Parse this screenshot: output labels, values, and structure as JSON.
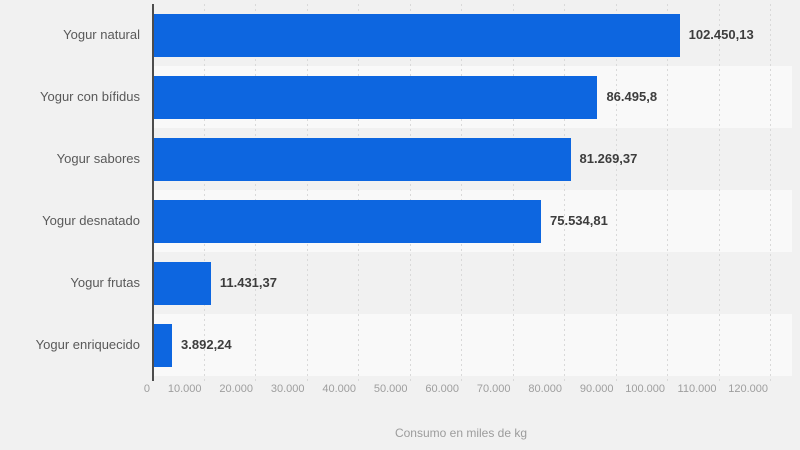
{
  "chart_data": {
    "type": "bar",
    "orientation": "horizontal",
    "title": "",
    "categories": [
      "Yogur natural",
      "Yogur con bífidus",
      "Yogur sabores",
      "Yogur desnatado",
      "Yogur frutas",
      "Yogur enriquecido"
    ],
    "values": [
      102450.13,
      86495.8,
      81269.37,
      75534.81,
      11431.37,
      3892.24
    ],
    "value_labels": [
      "102.450,13",
      "86.495,8",
      "81.269,37",
      "75.534,81",
      "11.431,37",
      "3.892,24"
    ],
    "xlabel": "Consumo en miles de kg",
    "ylabel": "",
    "xlim": [
      0,
      120000
    ],
    "x_ticks": [
      0,
      10000,
      20000,
      30000,
      40000,
      50000,
      60000,
      70000,
      80000,
      90000,
      100000,
      110000,
      120000
    ],
    "x_tick_labels": [
      "0",
      "10.000",
      "20.000",
      "30.000",
      "40.000",
      "50.000",
      "60.000",
      "70.000",
      "80.000",
      "90.000",
      "100.000",
      "110.000",
      "120.000"
    ],
    "grid": "vertical-dashed",
    "legend": "none",
    "colors": {
      "bar": "#0d66e0",
      "background": "#f1f1f1",
      "row_stripe": "#f9f9f9",
      "axis_line": "#4d4d4d",
      "gridline": "#d9d9d9",
      "category_label": "#595959",
      "value_label": "#3d3d3d",
      "tick_label": "#9e9e9e",
      "axis_title": "#9c9c9c"
    }
  }
}
